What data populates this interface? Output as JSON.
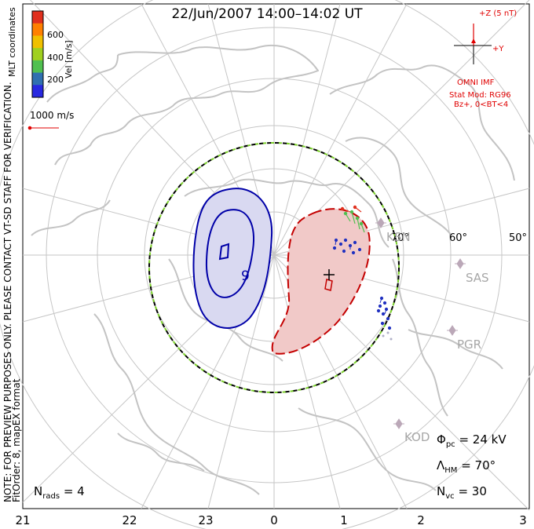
{
  "title": "22/Jun/2007 14:00–14:02 UT",
  "colorbar": {
    "label": "Vel [m/s]",
    "ticks": [
      "600",
      "400",
      "200"
    ],
    "colors": [
      "#e0301e",
      "#ff8000",
      "#f0c000",
      "#a0d020",
      "#50c050",
      "#3070b0",
      "#2828e0"
    ]
  },
  "mlt_coordinates_label": "MLT coordinates",
  "vector_scale": "1000 m/s",
  "imf": {
    "z_label": "+Z (5 nT)",
    "y_label": "+Y",
    "source": "OMNI IMF",
    "stat_model": "Stat Mod: RG96",
    "condition": "Bz+, 0<BT<4"
  },
  "note_line1": "NOTE: FOR PREVIEW PURPOSES ONLY. PLEASE CONTACT VT-SD STAFF FOR VERIFICATION.",
  "note_line2": "FitOrder: 8, mapEX format",
  "latitude_labels": [
    "70°",
    "60°",
    "50°"
  ],
  "radar_stations": [
    "KSN",
    "SAS",
    "PGR",
    "KOD"
  ],
  "mlt_labels": [
    "21",
    "22",
    "23",
    "0",
    "1",
    "2",
    "3"
  ],
  "contour_label": "9",
  "stats": {
    "n_rads_label": "N",
    "n_rads_sub": "rads",
    "n_rads_value": "= 4",
    "phi_label": "Φ",
    "phi_sub": "pc",
    "phi_value": "= 24 kV",
    "lambda_label": "Λ",
    "lambda_sub": "HM",
    "lambda_value": "= 70°",
    "nvc_label": "N",
    "nvc_sub": "vc",
    "nvc_value": "= 30"
  },
  "colors": {
    "positive_cell": "#f1c9c8",
    "positive_line": "#c40000",
    "negative_cell": "#d9d9f1",
    "negative_line": "#0000a8",
    "boundary_green": "#7bd02a",
    "grid": "#c6c6c6",
    "coast": "#c3c3c3",
    "vectors": "#2030c0"
  }
}
